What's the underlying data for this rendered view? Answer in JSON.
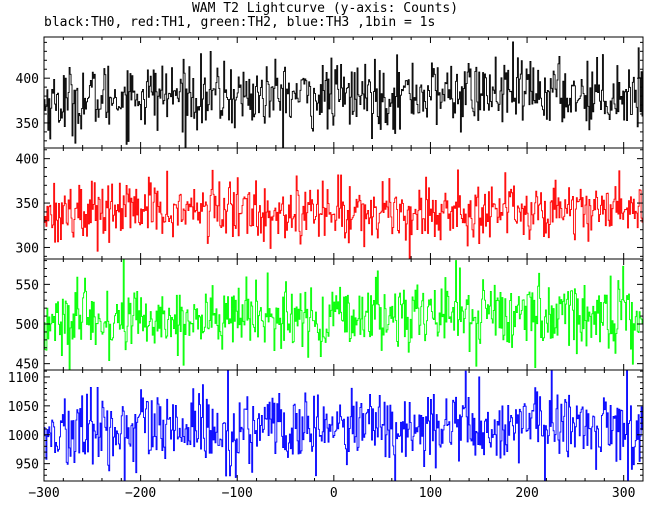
{
  "chart_data": {
    "type": "line",
    "title": "WAM T2 Lightcurve (y-axis: Counts)",
    "subtitle": "black:TH0, red:TH1, green:TH2, blue:TH3 ,1bin = 1s",
    "xlim": [
      -300,
      320
    ],
    "xticks": [
      "-300",
      "-200",
      "-100",
      "0",
      "100",
      "200",
      "300"
    ],
    "grid": false,
    "panels": [
      {
        "name": "TH0",
        "color": "#000000",
        "ylim": [
          322,
          446
        ],
        "yticks": [
          "350",
          "400"
        ],
        "mean": 381,
        "spread": 19,
        "x_step": 1,
        "profile": [
          [
            -300,
            372
          ],
          [
            -200,
            382
          ],
          [
            -100,
            380
          ],
          [
            0,
            380
          ],
          [
            100,
            383
          ],
          [
            200,
            384
          ],
          [
            320,
            382
          ]
        ]
      },
      {
        "name": "TH1",
        "color": "#ff0000",
        "ylim": [
          287,
          412
        ],
        "yticks": [
          "300",
          "350",
          "400"
        ],
        "mean": 342,
        "spread": 17,
        "x_step": 1,
        "profile": [
          [
            -300,
            340
          ],
          [
            -200,
            342
          ],
          [
            -100,
            342
          ],
          [
            0,
            340
          ],
          [
            100,
            340
          ],
          [
            200,
            343
          ],
          [
            320,
            345
          ]
        ]
      },
      {
        "name": "TH2",
        "color": "#00ff00",
        "ylim": [
          442,
          582
        ],
        "yticks": [
          "450",
          "500",
          "550"
        ],
        "mean": 505,
        "spread": 22,
        "x_step": 1,
        "profile": [
          [
            -300,
            500
          ],
          [
            -200,
            505
          ],
          [
            -100,
            507
          ],
          [
            0,
            505
          ],
          [
            100,
            515
          ],
          [
            200,
            512
          ],
          [
            320,
            512
          ]
        ]
      },
      {
        "name": "TH3",
        "color": "#0000ff",
        "ylim": [
          920,
          1112
        ],
        "yticks": [
          "950",
          "1000",
          "1050",
          "1100"
        ],
        "mean": 1008,
        "spread": 33,
        "x_step": 1,
        "profile": [
          [
            -300,
            1000
          ],
          [
            -200,
            1006
          ],
          [
            -100,
            1007
          ],
          [
            0,
            1010
          ],
          [
            100,
            1012
          ],
          [
            200,
            1015
          ],
          [
            320,
            1012
          ]
        ]
      }
    ]
  }
}
